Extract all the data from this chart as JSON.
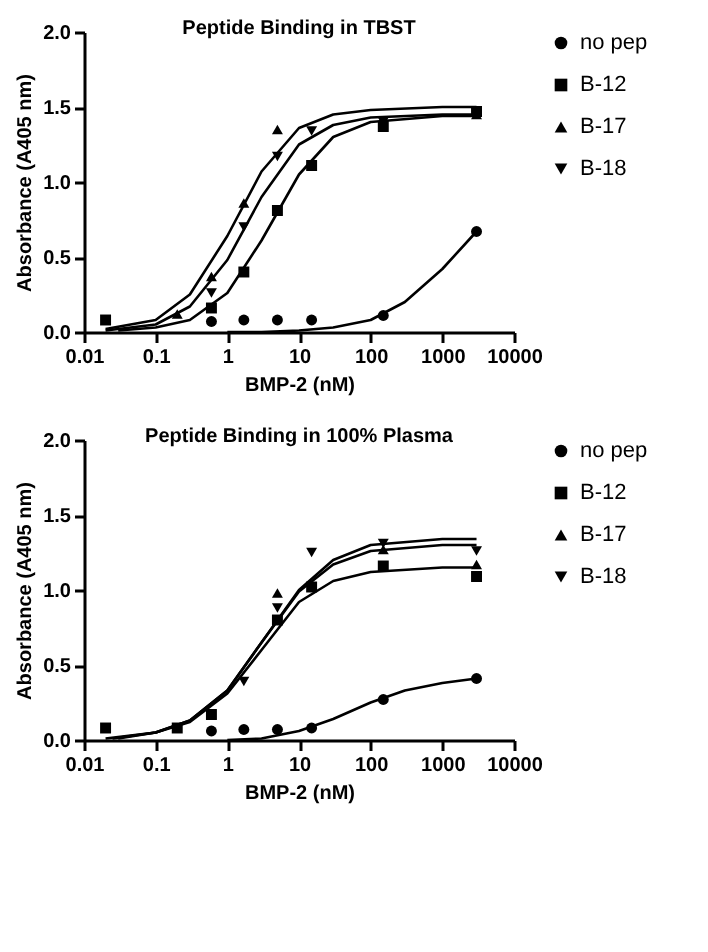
{
  "chart_data": [
    {
      "type": "scatter",
      "title": "Peptide Binding in TBST",
      "xlabel": "BMP-2 (nM)",
      "ylabel": "Absorbance (A405 nm)",
      "log": "x",
      "xlim": [
        0.01,
        10000
      ],
      "xticks": [
        0.01,
        0.1,
        1,
        10,
        100,
        1000,
        10000
      ],
      "ylim": [
        0,
        2
      ],
      "yticks": [
        {
          "value": 0,
          "label": "0.0"
        },
        {
          "value": 0.5,
          "label": "0.5"
        },
        {
          "value": 1,
          "label": "1.0"
        },
        {
          "value": 1.5,
          "label": "1.5"
        },
        {
          "value": 2,
          "label": "2.0"
        }
      ],
      "grid": false,
      "legend": "right",
      "x": [
        0.02,
        0.2,
        0.6,
        1.7,
        5,
        15,
        150,
        3000
      ],
      "series": [
        {
          "name": "no pep",
          "color": "#000000",
          "marker": "circle",
          "values": [
            null,
            null,
            0.07,
            0.08,
            0.08,
            0.08,
            0.11,
            0.67
          ]
        },
        {
          "name": "B-12",
          "color": "#000000",
          "marker": "square",
          "values": [
            0.08,
            null,
            0.16,
            0.4,
            0.81,
            1.11,
            1.37,
            1.47
          ]
        },
        {
          "name": "B-17",
          "color": "#000000",
          "marker": "triangle",
          "values": [
            null,
            0.12,
            0.37,
            0.86,
            1.35,
            null,
            null,
            1.45
          ]
        },
        {
          "name": "B-18",
          "color": "#000000",
          "marker": "triangle-down",
          "values": [
            null,
            null,
            0.26,
            0.7,
            1.17,
            1.34,
            1.4,
            null
          ]
        },
        {
          "type": "line",
          "color": "#000000",
          "marker": "none",
          "x": [
            1,
            3,
            10,
            30,
            100,
            300,
            1000,
            3000
          ],
          "values": [
            0.0,
            0.0,
            0.01,
            0.03,
            0.08,
            0.2,
            0.42,
            0.67
          ]
        },
        {
          "type": "line",
          "color": "#000000",
          "marker": "none",
          "x": [
            0.03,
            0.1,
            0.3,
            1,
            3,
            10,
            30,
            100,
            1000,
            3000
          ],
          "values": [
            0.01,
            0.03,
            0.08,
            0.26,
            0.61,
            1.05,
            1.3,
            1.4,
            1.44,
            1.44
          ]
        },
        {
          "type": "line",
          "color": "#000000",
          "marker": "none",
          "x": [
            0.02,
            0.1,
            0.3,
            1,
            3,
            10,
            30,
            100,
            1000,
            3000
          ],
          "values": [
            0.02,
            0.08,
            0.25,
            0.64,
            1.07,
            1.36,
            1.45,
            1.48,
            1.5,
            1.5
          ]
        },
        {
          "type": "line",
          "color": "#000000",
          "marker": "none",
          "x": [
            0.02,
            0.1,
            0.3,
            1,
            3,
            10,
            30,
            100,
            1000,
            3000
          ],
          "values": [
            0.01,
            0.05,
            0.17,
            0.48,
            0.9,
            1.25,
            1.38,
            1.43,
            1.45,
            1.45
          ]
        }
      ]
    },
    {
      "type": "scatter",
      "title": "Peptide Binding in 100% Plasma",
      "xlabel": "BMP-2 (nM)",
      "ylabel": "Absorbance (A405 nm)",
      "log": "x",
      "xlim": [
        0.01,
        10000
      ],
      "xticks": [
        0.01,
        0.1,
        1,
        10,
        100,
        1000,
        10000
      ],
      "ylim": [
        0,
        2
      ],
      "yticks": [
        {
          "value": 0,
          "label": "0.0"
        },
        {
          "value": 0.5,
          "label": "0.5"
        },
        {
          "value": 1,
          "label": "1.0"
        },
        {
          "value": 1.5,
          "label": "1.5"
        },
        {
          "value": 2,
          "label": "2.0"
        }
      ],
      "grid": false,
      "legend": "right",
      "x": [
        0.02,
        0.2,
        0.6,
        1.7,
        5,
        15,
        150,
        3000
      ],
      "series": [
        {
          "name": "no pep",
          "color": "#000000",
          "marker": "circle",
          "values": [
            null,
            null,
            0.06,
            0.07,
            0.07,
            0.08,
            0.27,
            0.41
          ]
        },
        {
          "name": "B-12",
          "color": "#000000",
          "marker": "square",
          "values": [
            0.08,
            0.08,
            0.17,
            null,
            0.8,
            1.02,
            1.16,
            1.09
          ]
        },
        {
          "name": "B-17",
          "color": "#000000",
          "marker": "triangle",
          "values": [
            null,
            null,
            null,
            null,
            0.98,
            null,
            1.27,
            1.17
          ]
        },
        {
          "name": "B-18",
          "color": "#000000",
          "marker": "triangle-down",
          "values": [
            null,
            null,
            null,
            0.39,
            0.88,
            1.25,
            1.31,
            1.26
          ]
        },
        {
          "type": "line",
          "color": "#000000",
          "marker": "none",
          "x": [
            1,
            3,
            10,
            30,
            100,
            300,
            1000,
            3000
          ],
          "values": [
            0.0,
            0.01,
            0.06,
            0.14,
            0.25,
            0.33,
            0.38,
            0.41
          ]
        },
        {
          "type": "line",
          "color": "#000000",
          "marker": "none",
          "x": [
            0.03,
            0.1,
            0.3,
            1,
            3,
            10,
            30,
            100,
            1000,
            3000
          ],
          "values": [
            0.01,
            0.05,
            0.12,
            0.31,
            0.6,
            0.92,
            1.06,
            1.12,
            1.15,
            1.15
          ]
        },
        {
          "type": "line",
          "color": "#000000",
          "marker": "none",
          "x": [
            0.02,
            0.1,
            0.3,
            1,
            3,
            10,
            30,
            100,
            1000,
            3000
          ],
          "values": [
            0.01,
            0.05,
            0.13,
            0.33,
            0.65,
            0.99,
            1.17,
            1.26,
            1.3,
            1.3
          ]
        },
        {
          "type": "line",
          "color": "#000000",
          "marker": "none",
          "x": [
            0.025,
            0.1,
            0.3,
            1,
            3,
            10,
            30,
            100,
            1000,
            3000
          ],
          "values": [
            0.01,
            0.05,
            0.13,
            0.33,
            0.65,
            1.0,
            1.2,
            1.3,
            1.34,
            1.34
          ]
        }
      ]
    }
  ]
}
